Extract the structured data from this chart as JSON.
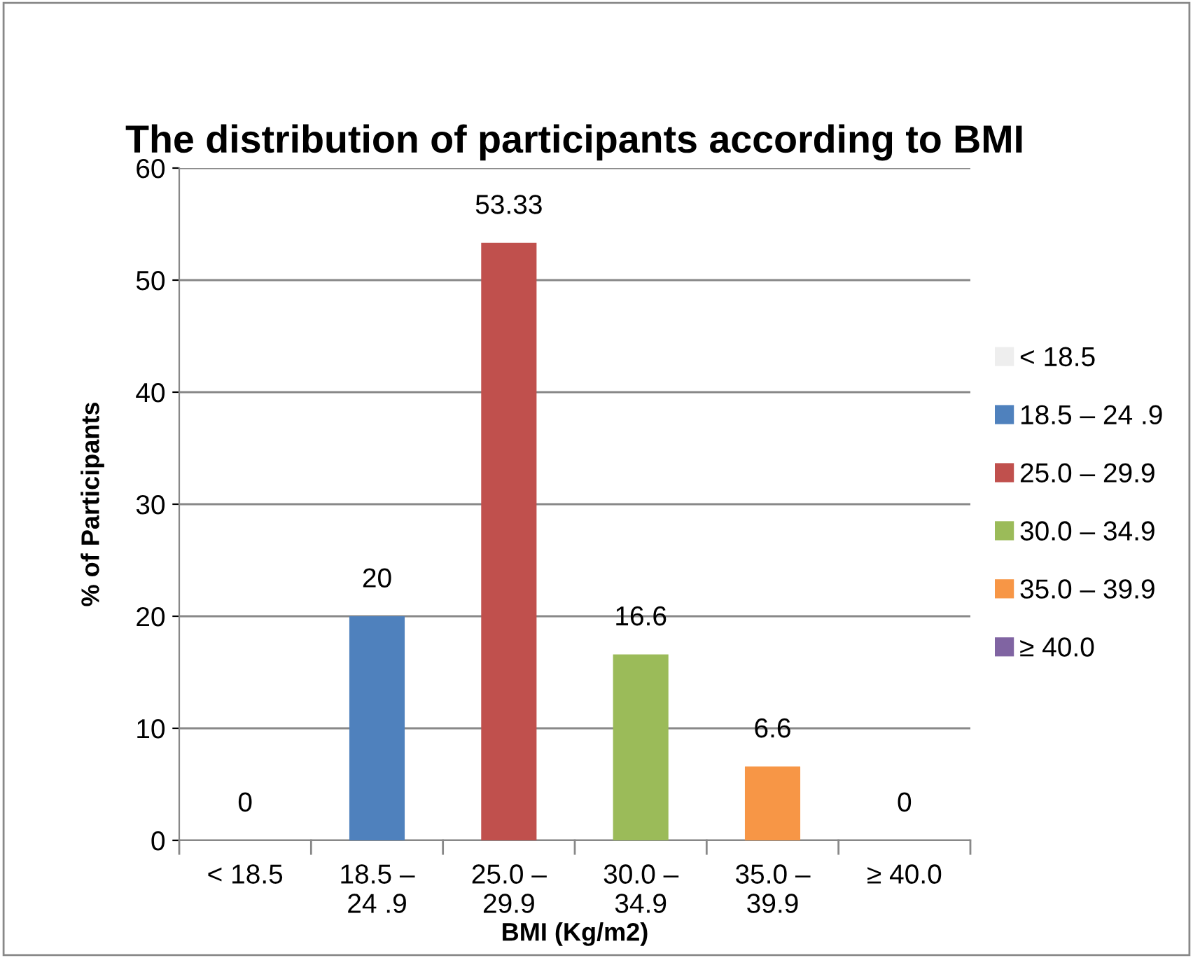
{
  "chart_data": {
    "type": "bar",
    "title": "The distribution of participants according to BMI",
    "xlabel": "BMI (Kg/m2)",
    "ylabel": "% of Participants",
    "categories": [
      "< 18.5",
      "18.5 – 24 .9",
      "25.0 – 29.9",
      "30.0 – 34.9",
      "35.0 – 39.9",
      "≥ 40.0"
    ],
    "series": [
      {
        "name": "< 18.5",
        "color": "#eeeeee",
        "values": [
          0,
          null,
          null,
          null,
          null,
          null
        ]
      },
      {
        "name": "18.5 – 24 .9",
        "color": "#4f81bd",
        "values": [
          null,
          20,
          null,
          null,
          null,
          null
        ]
      },
      {
        "name": "25.0 – 29.9",
        "color": "#c0504d",
        "values": [
          null,
          null,
          53.33,
          null,
          null,
          null
        ]
      },
      {
        "name": "30.0 – 34.9",
        "color": "#9bbb59",
        "values": [
          null,
          null,
          null,
          16.6,
          null,
          null
        ]
      },
      {
        "name": "35.0 – 39.9",
        "color": "#f79646",
        "values": [
          null,
          null,
          null,
          null,
          6.6,
          null
        ]
      },
      {
        "name": "≥ 40.0",
        "color": "#8064a2",
        "values": [
          null,
          null,
          null,
          null,
          null,
          0
        ]
      }
    ],
    "ylim": [
      0,
      60
    ],
    "yticks": [
      0,
      10,
      20,
      30,
      40,
      50,
      60
    ],
    "grid": "y",
    "legend": "right",
    "data_labels": true
  }
}
